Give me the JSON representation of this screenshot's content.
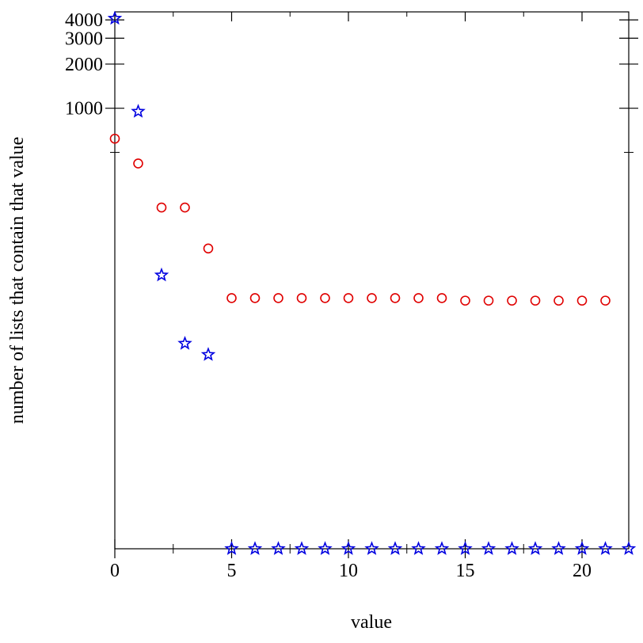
{
  "chart_data": {
    "type": "scatter",
    "title": "",
    "xlabel": "value",
    "ylabel": "number of lists that contain that value",
    "xlim": [
      0,
      22
    ],
    "ylim_transformed": [
      0,
      8.42
    ],
    "y_scale": "log(1+y)",
    "xticks_major": [
      0,
      5,
      10,
      15,
      20
    ],
    "xticks_minor": [
      2.5,
      7.5,
      12.5,
      17.5
    ],
    "xtick_labels": [
      "0",
      "5",
      "10",
      "15",
      "20"
    ],
    "yticks_labeled": [
      1000,
      2000,
      3000,
      4000
    ],
    "ytick_labels": [
      "1000",
      "2000",
      "3000",
      "4000"
    ],
    "yticks_minor": [
      500
    ],
    "grid": false,
    "legend": "none",
    "series": [
      {
        "marker": "circle",
        "color": "#e00000",
        "x": [
          0,
          1,
          2,
          3,
          4,
          5,
          6,
          7,
          8,
          9,
          10,
          11,
          12,
          13,
          14,
          15,
          16,
          17,
          18,
          19,
          20,
          21
        ],
        "y": [
          620,
          420,
          210,
          210,
          110,
          50,
          50,
          50,
          50,
          50,
          50,
          50,
          50,
          50,
          50,
          48,
          48,
          48,
          48,
          48,
          48,
          48
        ]
      },
      {
        "marker": "star",
        "color": "#0000e0",
        "x": [
          0,
          1,
          2,
          3,
          4,
          5,
          6,
          7,
          8,
          9,
          10,
          11,
          12,
          13,
          14,
          15,
          16,
          17,
          18,
          19,
          20,
          21,
          22
        ],
        "y": [
          4096,
          950,
          72,
          24,
          20,
          0,
          0,
          0,
          0,
          0,
          0,
          0,
          0,
          0,
          0,
          0,
          0,
          0,
          0,
          0,
          0,
          0,
          0
        ]
      }
    ]
  }
}
